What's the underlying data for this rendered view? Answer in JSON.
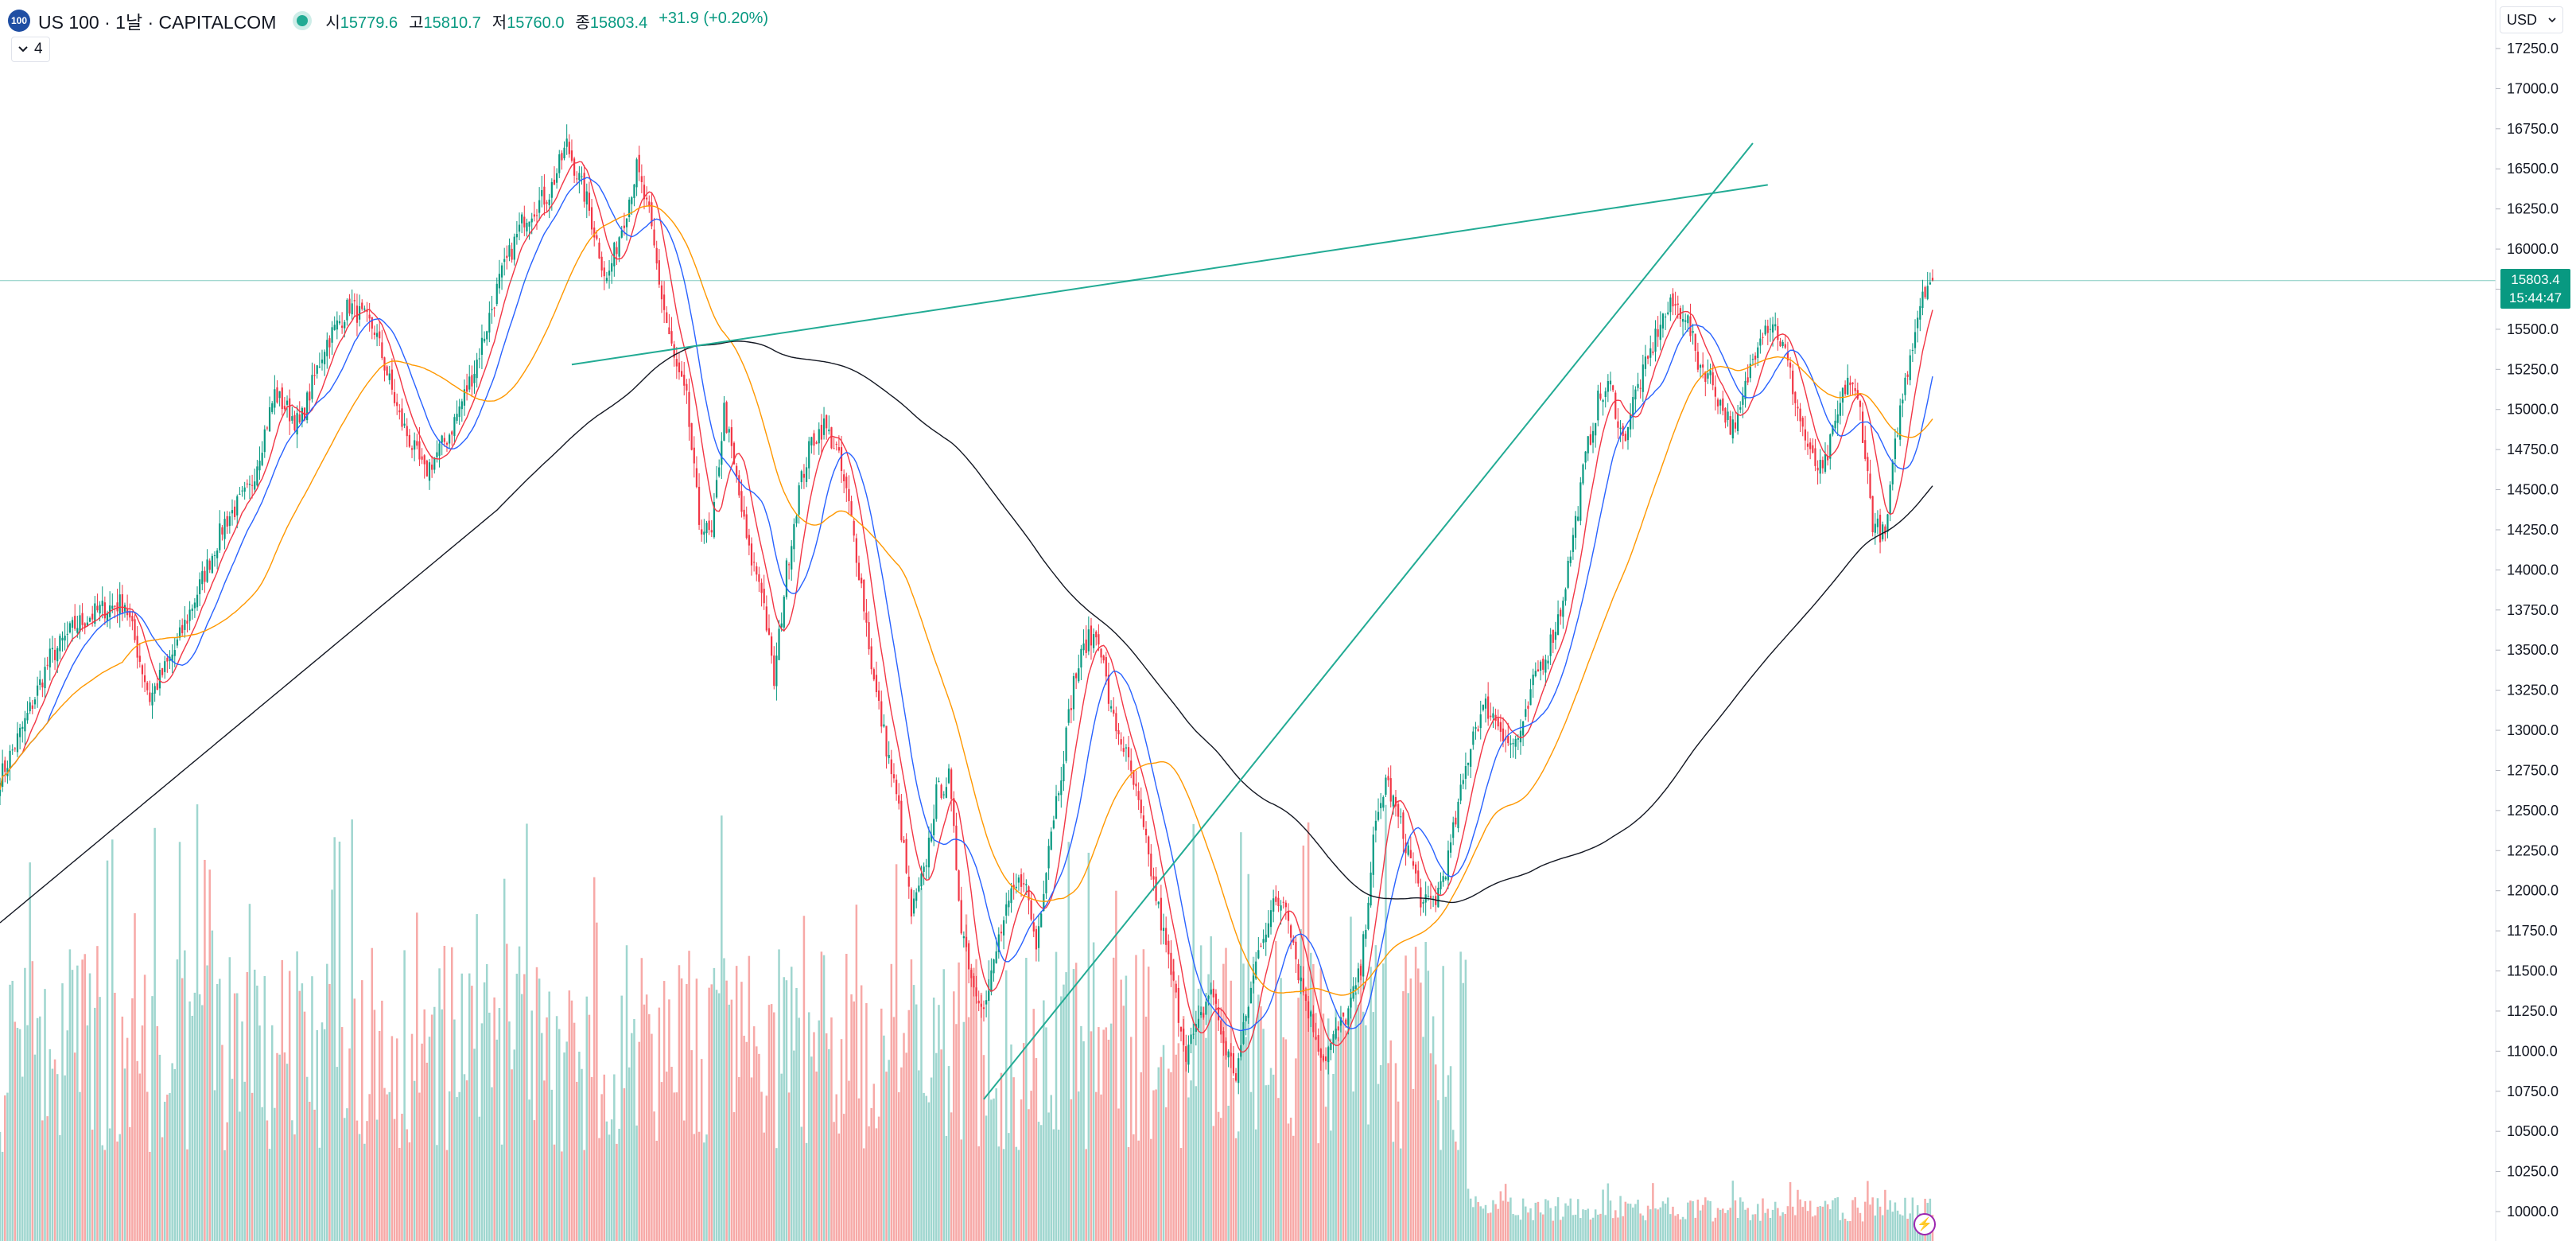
{
  "header": {
    "logo_text": "100",
    "symbol": "US 100 · 1날 · CAPITALCOM",
    "ohlc": [
      {
        "label": "시",
        "value": "15779.6"
      },
      {
        "label": "고",
        "value": "15810.7"
      },
      {
        "label": "저",
        "value": "15760.0"
      },
      {
        "label": "종",
        "value": "15803.4"
      }
    ],
    "change": "+31.9 (+0.20%)",
    "indicator_count": "4",
    "currency": "USD"
  },
  "price_tag": {
    "price": "15803.4",
    "countdown": "15:44:47"
  },
  "colors": {
    "up": "#089981",
    "down": "#f23645",
    "volume_up": "#9fd6cf",
    "volume_down": "#f7a9a7",
    "ma_red": "#f23645",
    "ma_blue": "#2962ff",
    "ma_orange": "#ff9800",
    "ma_black": "#131722",
    "trendline": "#22ab94"
  },
  "chart_data": {
    "type": "candlestick",
    "y_axis": {
      "min": 10000,
      "max": 17250,
      "step": 250,
      "ticks": [
        "17250.0",
        "17000.0",
        "16750.0",
        "16500.0",
        "16250.0",
        "16000.0",
        "15750.0",
        "15500.0",
        "15250.0",
        "15000.0",
        "14750.0",
        "14500.0",
        "14250.0",
        "14000.0",
        "13750.0",
        "13500.0",
        "13250.0",
        "13000.0",
        "12750.0",
        "12500.0",
        "12250.0",
        "12000.0",
        "11750.0",
        "11500.0",
        "11250.0",
        "11000.0",
        "10750.0",
        "10500.0",
        "10250.0",
        "10000.0"
      ]
    },
    "last_price": 15803.4,
    "price_path": [
      [
        0,
        12700
      ],
      [
        10,
        13050
      ],
      [
        20,
        13450
      ],
      [
        30,
        13650
      ],
      [
        40,
        13750
      ],
      [
        50,
        13800
      ],
      [
        60,
        13200
      ],
      [
        70,
        13500
      ],
      [
        80,
        13900
      ],
      [
        90,
        14300
      ],
      [
        100,
        14500
      ],
      [
        110,
        15100
      ],
      [
        120,
        14900
      ],
      [
        130,
        15400
      ],
      [
        140,
        15650
      ],
      [
        150,
        15500
      ],
      [
        160,
        14950
      ],
      [
        170,
        14600
      ],
      [
        180,
        14850
      ],
      [
        190,
        15250
      ],
      [
        200,
        15800
      ],
      [
        210,
        16200
      ],
      [
        220,
        16350
      ],
      [
        227,
        16650
      ],
      [
        235,
        16300
      ],
      [
        243,
        15800
      ],
      [
        250,
        16200
      ],
      [
        255,
        16500
      ],
      [
        260,
        16200
      ],
      [
        265,
        15700
      ],
      [
        270,
        15300
      ],
      [
        275,
        15050
      ],
      [
        280,
        14300
      ],
      [
        285,
        14200
      ],
      [
        290,
        15000
      ],
      [
        295,
        14550
      ],
      [
        300,
        14100
      ],
      [
        305,
        13900
      ],
      [
        310,
        13300
      ],
      [
        315,
        14000
      ],
      [
        320,
        14500
      ],
      [
        325,
        14800
      ],
      [
        330,
        14900
      ],
      [
        335,
        14750
      ],
      [
        340,
        14400
      ],
      [
        345,
        13900
      ],
      [
        350,
        13300
      ],
      [
        355,
        12900
      ],
      [
        360,
        12500
      ],
      [
        365,
        11850
      ],
      [
        370,
        12100
      ],
      [
        375,
        12600
      ],
      [
        380,
        12700
      ],
      [
        385,
        11800
      ],
      [
        390,
        11400
      ],
      [
        395,
        11300
      ],
      [
        400,
        11700
      ],
      [
        405,
        11950
      ],
      [
        410,
        12100
      ],
      [
        415,
        11650
      ],
      [
        420,
        12300
      ],
      [
        425,
        12750
      ],
      [
        430,
        13300
      ],
      [
        435,
        13550
      ],
      [
        440,
        13600
      ],
      [
        445,
        13100
      ],
      [
        450,
        12900
      ],
      [
        455,
        12600
      ],
      [
        460,
        12200
      ],
      [
        465,
        11800
      ],
      [
        470,
        11400
      ],
      [
        475,
        11000
      ],
      [
        480,
        11150
      ],
      [
        485,
        11400
      ],
      [
        490,
        11050
      ],
      [
        495,
        10850
      ],
      [
        500,
        11300
      ],
      [
        505,
        11700
      ],
      [
        510,
        11900
      ],
      [
        515,
        11950
      ],
      [
        520,
        11500
      ],
      [
        525,
        11200
      ],
      [
        530,
        10950
      ],
      [
        535,
        11100
      ],
      [
        540,
        11250
      ],
      [
        545,
        11500
      ],
      [
        550,
        12300
      ],
      [
        555,
        12700
      ],
      [
        560,
        12450
      ],
      [
        565,
        12200
      ],
      [
        570,
        11900
      ],
      [
        575,
        11950
      ],
      [
        580,
        12200
      ],
      [
        585,
        12600
      ],
      [
        590,
        13000
      ],
      [
        595,
        13150
      ],
      [
        600,
        13050
      ],
      [
        605,
        12900
      ],
      [
        610,
        13000
      ],
      [
        615,
        13350
      ],
      [
        620,
        13500
      ],
      [
        625,
        13750
      ],
      [
        630,
        14200
      ],
      [
        635,
        14700
      ],
      [
        640,
        15050
      ],
      [
        645,
        15150
      ],
      [
        650,
        14800
      ],
      [
        655,
        15100
      ],
      [
        660,
        15300
      ],
      [
        665,
        15550
      ],
      [
        670,
        15650
      ],
      [
        675,
        15600
      ],
      [
        680,
        15300
      ],
      [
        685,
        15200
      ],
      [
        690,
        15000
      ],
      [
        695,
        14850
      ],
      [
        700,
        15200
      ],
      [
        705,
        15500
      ],
      [
        710,
        15550
      ],
      [
        715,
        15350
      ],
      [
        720,
        15000
      ],
      [
        725,
        14700
      ],
      [
        730,
        14600
      ],
      [
        735,
        14900
      ],
      [
        740,
        15200
      ],
      [
        745,
        15000
      ],
      [
        750,
        14300
      ],
      [
        755,
        14200
      ],
      [
        760,
        14900
      ],
      [
        765,
        15350
      ],
      [
        770,
        15750
      ],
      [
        773,
        15803
      ]
    ],
    "bar_count": 775,
    "moving_averages": [
      {
        "period": 10,
        "color": "#f23645"
      },
      {
        "period": 20,
        "color": "#2962ff"
      },
      {
        "period": 50,
        "color": "#ff9800"
      },
      {
        "period": 200,
        "color": "#131722"
      }
    ],
    "trendlines": [
      {
        "from": [
          229,
          15280
        ],
        "to": [
          708,
          16400
        ]
      },
      {
        "from": [
          394,
          10700
        ],
        "to": [
          702,
          16660
        ]
      }
    ],
    "grid": false
  }
}
